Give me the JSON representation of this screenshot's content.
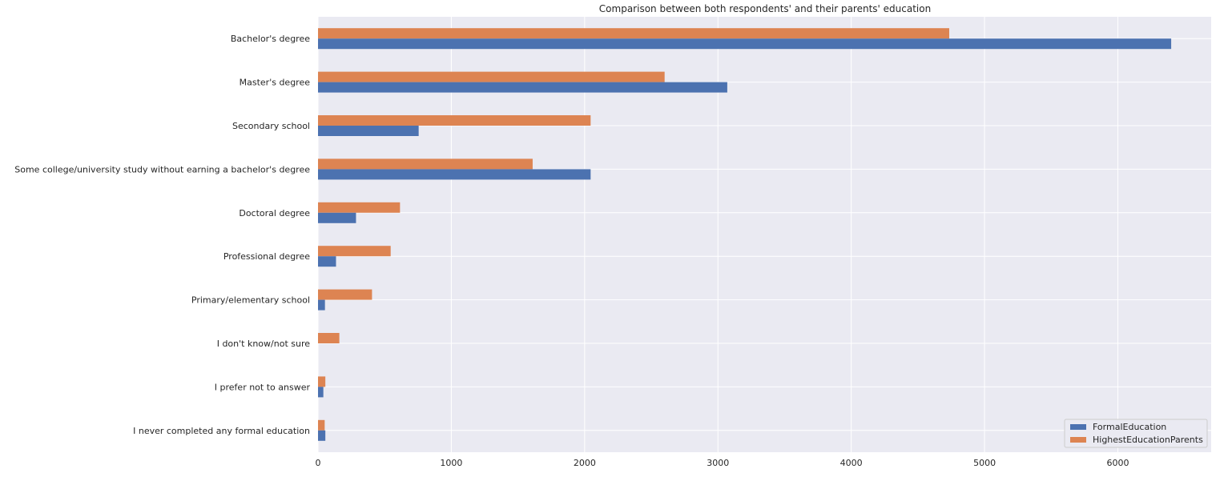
{
  "chart_data": {
    "type": "bar",
    "orientation": "horizontal",
    "title": "Comparison between both respondents' and their parents' education",
    "xlabel": "",
    "ylabel": "",
    "xlim": [
      0,
      6700
    ],
    "xticks": [
      0,
      1000,
      2000,
      3000,
      4000,
      5000,
      6000
    ],
    "grid": true,
    "legend_position": "bottom-right",
    "categories": [
      "Bachelor's degree",
      "Master's degree",
      "Secondary school",
      "Some college/university study without earning a bachelor's degree",
      "Doctoral degree",
      "Professional degree",
      "Primary/elementary school",
      "I don't know/not sure",
      "I prefer not to answer",
      "I never completed any formal education"
    ],
    "series": [
      {
        "name": "FormalEducation",
        "color": "#4c72b0",
        "values": [
          6400,
          3070,
          755,
          2045,
          285,
          135,
          52,
          0,
          40,
          55
        ]
      },
      {
        "name": "HighestEducationParents",
        "color": "#dd8452",
        "values": [
          4735,
          2600,
          2045,
          1610,
          615,
          545,
          405,
          160,
          55,
          50
        ]
      }
    ]
  }
}
